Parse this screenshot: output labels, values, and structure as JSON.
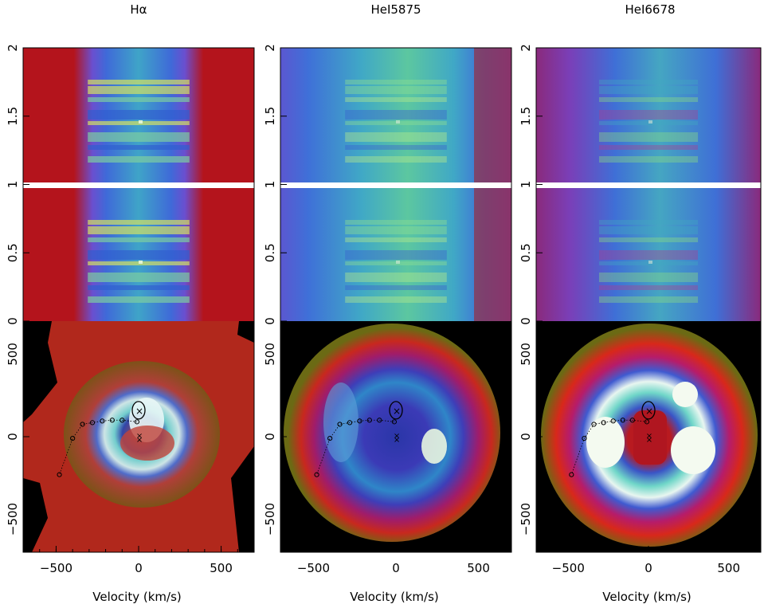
{
  "figure": {
    "colors": {
      "trail_red": "#b4141c",
      "trail_dark": "#8c1010",
      "trail_blue": "#6a5bd0",
      "map_olive": "#6b6a14",
      "map_black": "#000000",
      "separator": "#ffffff",
      "markers": "#000000"
    }
  },
  "chart_data": [
    {
      "type": "heatmap",
      "title": "Hα",
      "line": "Hα",
      "trailed_spectrum": {
        "ylabel": "",
        "ylim": [
          0,
          2
        ],
        "yticks": [
          "0",
          "0.5",
          "1",
          "1.5",
          "2"
        ]
      },
      "doppler_map": {
        "xlabel": "Velocity (km/s)",
        "ylabel": "",
        "xlim": [
          -700,
          700
        ],
        "ylim": [
          -700,
          700
        ],
        "xticks": [
          "−500",
          "0",
          "500"
        ],
        "yticks": [
          "−500",
          "0",
          "500"
        ]
      }
    },
    {
      "type": "heatmap",
      "title": "HeI5875",
      "line": "HeI5875",
      "trailed_spectrum": {
        "ylabel": "",
        "ylim": [
          0,
          2
        ],
        "yticks": [
          "0",
          "0.5",
          "1",
          "1.5",
          "2"
        ]
      },
      "doppler_map": {
        "xlabel": "Velocity (km/s)",
        "ylabel": "",
        "xlim": [
          -700,
          700
        ],
        "ylim": [
          -700,
          700
        ],
        "xticks": [
          "−500",
          "0",
          "500"
        ],
        "yticks": [
          "−500",
          "0",
          "500"
        ]
      }
    },
    {
      "type": "heatmap",
      "title": "HeI6678",
      "line": "HeI6678",
      "trailed_spectrum": {
        "ylabel": "",
        "ylim": [
          0,
          2
        ],
        "yticks": [
          "0",
          "0.5",
          "1",
          "1.5",
          "2"
        ]
      },
      "doppler_map": {
        "xlabel": "Velocity (km/s)",
        "ylabel": "",
        "xlim": [
          -700,
          700
        ],
        "ylim": [
          -700,
          700
        ],
        "xticks": [
          "−500",
          "0",
          "500"
        ],
        "yticks": [
          "−500",
          "0",
          "500"
        ]
      }
    }
  ]
}
